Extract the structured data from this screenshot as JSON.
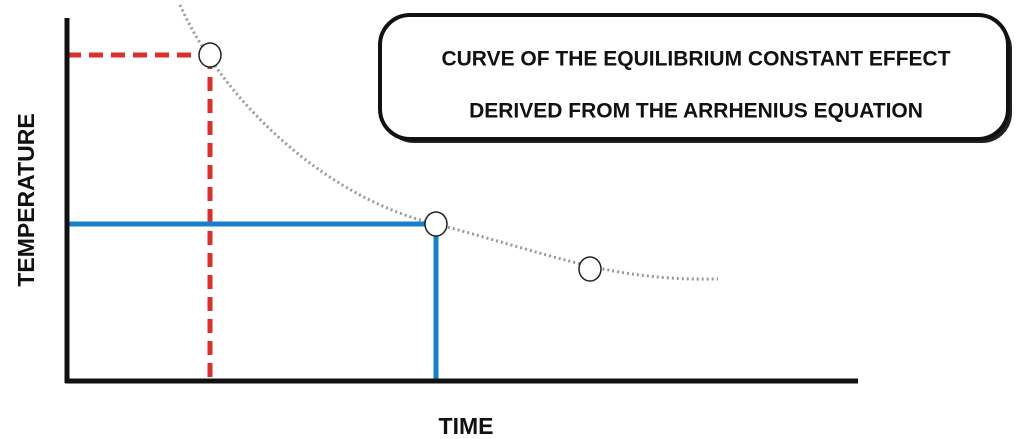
{
  "title": [
    "CURVE OF THE EQUILIBRIUM CONSTANT EFFECT",
    "DERIVED FROM THE ARRHENIUS EQUATION"
  ],
  "x_axis_label": "TIME",
  "y_axis_label": "TEMPERATURE"
}
